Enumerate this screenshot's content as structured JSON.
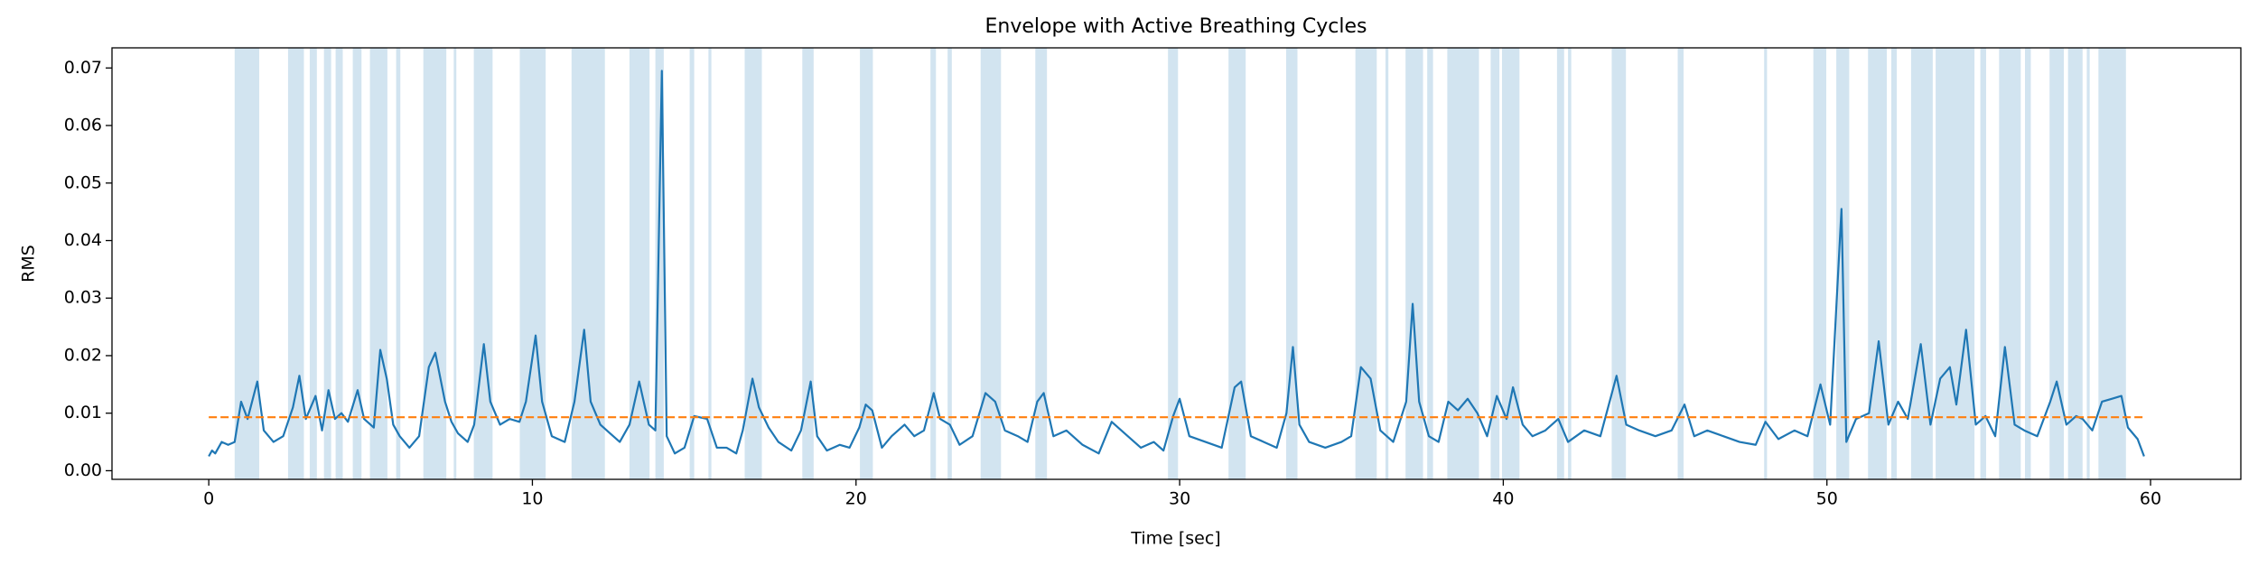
{
  "chart_data": {
    "type": "line",
    "title": "Envelope with Active Breathing Cycles",
    "xlabel": "Time [sec]",
    "ylabel": "RMS",
    "xlim": [
      -2.99,
      62.79
    ],
    "ylim": [
      -0.0015,
      0.0735
    ],
    "xticks": [
      0,
      10,
      20,
      30,
      40,
      50,
      60
    ],
    "yticks": [
      {
        "value": 0,
        "label": "0.00"
      },
      0.01,
      0.02,
      0.03,
      0.04,
      0.05,
      0.06,
      0.07
    ],
    "span_color": "#1f77b4",
    "spans": [
      [
        0.8,
        1.56
      ],
      [
        2.45,
        2.94
      ],
      [
        3.12,
        3.34
      ],
      [
        3.56,
        3.78
      ],
      [
        3.92,
        4.14
      ],
      [
        4.45,
        4.72
      ],
      [
        4.98,
        5.52
      ],
      [
        5.79,
        5.92
      ],
      [
        6.63,
        7.34
      ],
      [
        7.57,
        7.65
      ],
      [
        8.19,
        8.77
      ],
      [
        9.61,
        10.41
      ],
      [
        11.21,
        12.24
      ],
      [
        13.0,
        13.62
      ],
      [
        13.8,
        14.06
      ],
      [
        14.86,
        15.0
      ],
      [
        15.44,
        15.53
      ],
      [
        16.56,
        17.09
      ],
      [
        18.34,
        18.69
      ],
      [
        20.12,
        20.52
      ],
      [
        22.3,
        22.47
      ],
      [
        22.83,
        22.96
      ],
      [
        23.85,
        24.48
      ],
      [
        25.54,
        25.9
      ],
      [
        29.64,
        29.95
      ],
      [
        31.51,
        32.04
      ],
      [
        33.29,
        33.64
      ],
      [
        35.43,
        36.09
      ],
      [
        36.36,
        36.45
      ],
      [
        36.98,
        37.52
      ],
      [
        37.65,
        37.83
      ],
      [
        38.27,
        39.25
      ],
      [
        39.61,
        39.88
      ],
      [
        39.96,
        40.5
      ],
      [
        41.66,
        41.88
      ],
      [
        42.0,
        42.1
      ],
      [
        43.35,
        43.79
      ],
      [
        45.39,
        45.57
      ],
      [
        48.06,
        48.15
      ],
      [
        49.58,
        49.98
      ],
      [
        50.29,
        50.69
      ],
      [
        51.27,
        51.85
      ],
      [
        51.99,
        52.16
      ],
      [
        52.6,
        53.27
      ],
      [
        53.36,
        54.56
      ],
      [
        54.74,
        54.92
      ],
      [
        55.32,
        55.99
      ],
      [
        56.12,
        56.3
      ],
      [
        56.88,
        57.32
      ],
      [
        57.45,
        57.9
      ],
      [
        58.03,
        58.12
      ],
      [
        58.39,
        59.24
      ]
    ],
    "series": [
      {
        "color": "#1f77b4",
        "dashed": false,
        "x": [
          0.0,
          0.1,
          0.2,
          0.4,
          0.6,
          0.8,
          1.0,
          1.2,
          1.5,
          1.7,
          2.0,
          2.3,
          2.6,
          2.8,
          3.0,
          3.3,
          3.5,
          3.7,
          3.9,
          4.1,
          4.3,
          4.6,
          4.8,
          5.1,
          5.3,
          5.5,
          5.7,
          5.9,
          6.2,
          6.5,
          6.8,
          7.0,
          7.3,
          7.5,
          7.7,
          8.0,
          8.2,
          8.5,
          8.7,
          9.0,
          9.3,
          9.6,
          9.8,
          10.1,
          10.3,
          10.6,
          11.0,
          11.3,
          11.6,
          11.8,
          12.1,
          12.4,
          12.7,
          13.0,
          13.3,
          13.6,
          13.8,
          14.0,
          14.15,
          14.4,
          14.7,
          15.0,
          15.4,
          15.7,
          16.0,
          16.3,
          16.5,
          16.8,
          17.0,
          17.3,
          17.6,
          18.0,
          18.3,
          18.6,
          18.8,
          19.1,
          19.5,
          19.8,
          20.1,
          20.3,
          20.5,
          20.8,
          21.1,
          21.5,
          21.8,
          22.1,
          22.4,
          22.6,
          22.9,
          23.2,
          23.6,
          24.0,
          24.3,
          24.6,
          25.0,
          25.3,
          25.6,
          25.8,
          26.1,
          26.5,
          27.0,
          27.5,
          27.9,
          28.3,
          28.8,
          29.2,
          29.5,
          29.8,
          30.0,
          30.3,
          30.8,
          31.3,
          31.7,
          31.9,
          32.2,
          32.6,
          33.0,
          33.3,
          33.5,
          33.7,
          34.0,
          34.5,
          35.0,
          35.3,
          35.6,
          35.9,
          36.2,
          36.6,
          37.0,
          37.2,
          37.4,
          37.7,
          38.0,
          38.3,
          38.6,
          38.9,
          39.2,
          39.5,
          39.8,
          40.1,
          40.3,
          40.6,
          40.9,
          41.3,
          41.7,
          42.0,
          42.5,
          43.0,
          43.5,
          43.8,
          44.2,
          44.7,
          45.2,
          45.6,
          45.9,
          46.3,
          46.8,
          47.3,
          47.8,
          48.1,
          48.5,
          49.0,
          49.4,
          49.8,
          50.1,
          50.45,
          50.6,
          50.9,
          51.3,
          51.6,
          51.9,
          52.2,
          52.5,
          52.9,
          53.2,
          53.5,
          53.8,
          54.0,
          54.3,
          54.6,
          54.9,
          55.2,
          55.5,
          55.8,
          56.1,
          56.5,
          56.9,
          57.1,
          57.4,
          57.7,
          57.9,
          58.2,
          58.5,
          58.8,
          59.1,
          59.3,
          59.6,
          59.8
        ],
        "values": [
          0.0025,
          0.0035,
          0.003,
          0.005,
          0.0045,
          0.005,
          0.012,
          0.009,
          0.0155,
          0.007,
          0.005,
          0.006,
          0.011,
          0.0165,
          0.009,
          0.013,
          0.007,
          0.014,
          0.009,
          0.01,
          0.0085,
          0.014,
          0.009,
          0.0075,
          0.021,
          0.016,
          0.008,
          0.006,
          0.004,
          0.006,
          0.018,
          0.0205,
          0.012,
          0.0085,
          0.0065,
          0.005,
          0.008,
          0.022,
          0.012,
          0.008,
          0.009,
          0.0085,
          0.012,
          0.0235,
          0.012,
          0.006,
          0.005,
          0.012,
          0.0245,
          0.012,
          0.008,
          0.0065,
          0.005,
          0.008,
          0.0155,
          0.008,
          0.007,
          0.0695,
          0.006,
          0.003,
          0.004,
          0.0095,
          0.009,
          0.004,
          0.004,
          0.003,
          0.007,
          0.016,
          0.011,
          0.0075,
          0.005,
          0.0035,
          0.007,
          0.0155,
          0.006,
          0.0035,
          0.0045,
          0.004,
          0.0075,
          0.0115,
          0.0105,
          0.004,
          0.006,
          0.008,
          0.006,
          0.007,
          0.0135,
          0.009,
          0.008,
          0.0045,
          0.006,
          0.0135,
          0.012,
          0.007,
          0.006,
          0.005,
          0.012,
          0.0135,
          0.006,
          0.007,
          0.0045,
          0.003,
          0.0085,
          0.0065,
          0.004,
          0.005,
          0.0035,
          0.0095,
          0.0125,
          0.006,
          0.005,
          0.004,
          0.0145,
          0.0155,
          0.006,
          0.005,
          0.004,
          0.01,
          0.0215,
          0.008,
          0.005,
          0.004,
          0.005,
          0.006,
          0.018,
          0.016,
          0.007,
          0.005,
          0.012,
          0.029,
          0.012,
          0.006,
          0.005,
          0.012,
          0.0105,
          0.0125,
          0.01,
          0.006,
          0.013,
          0.009,
          0.0145,
          0.008,
          0.006,
          0.007,
          0.009,
          0.005,
          0.007,
          0.006,
          0.0165,
          0.008,
          0.007,
          0.006,
          0.007,
          0.0115,
          0.006,
          0.007,
          0.006,
          0.005,
          0.0045,
          0.0085,
          0.0055,
          0.007,
          0.006,
          0.015,
          0.008,
          0.0455,
          0.005,
          0.009,
          0.01,
          0.0225,
          0.008,
          0.012,
          0.009,
          0.022,
          0.008,
          0.016,
          0.018,
          0.0115,
          0.0245,
          0.008,
          0.0095,
          0.006,
          0.0215,
          0.008,
          0.007,
          0.006,
          0.012,
          0.0155,
          0.008,
          0.0095,
          0.009,
          0.007,
          0.012,
          0.0125,
          0.013,
          0.0075,
          0.0055,
          0.0025
        ]
      },
      {
        "color": "#ff7f0e",
        "dashed": true,
        "x": [
          0,
          59.8
        ],
        "values": [
          0.0093,
          0.0093
        ]
      }
    ]
  }
}
